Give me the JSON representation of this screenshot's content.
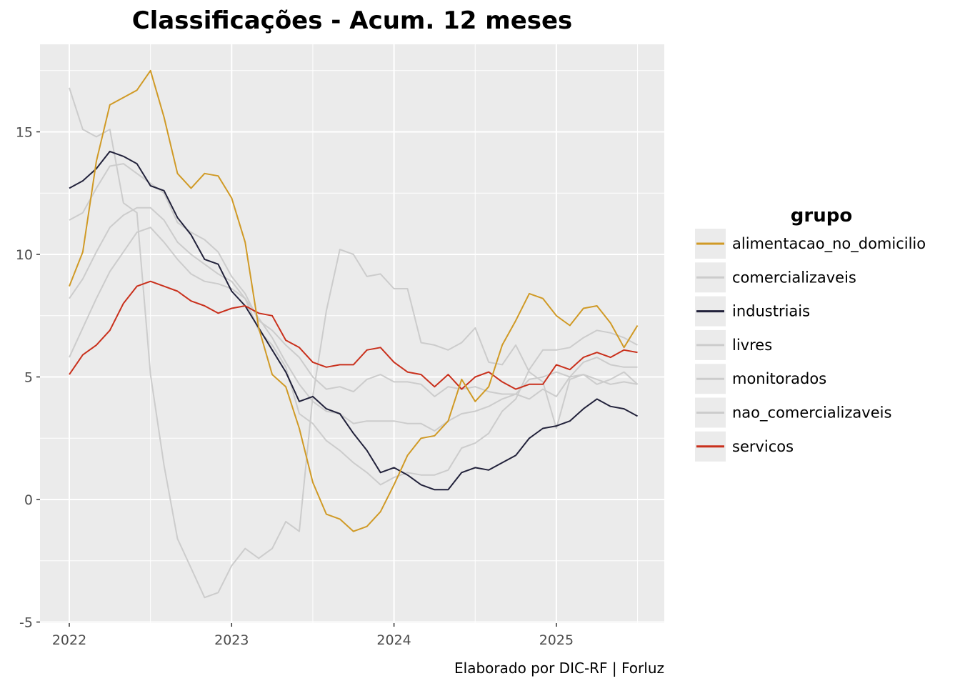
{
  "chart_data": {
    "type": "line",
    "title": "Classificações - Acum. 12 meses",
    "caption": "Elaborado por DIC-RF | Forluz",
    "legend_title": "grupo",
    "legend_position": "right",
    "grid": true,
    "xlabel": "",
    "ylabel": "",
    "x_ticks": [
      "2022",
      "2023",
      "2024",
      "2025"
    ],
    "y_ticks": [
      -5,
      0,
      5,
      10,
      15
    ],
    "ylim": [
      -5,
      18
    ],
    "x_start": "2022-01",
    "x_end": "2025-07",
    "series": [
      {
        "name": "comercializaveis",
        "color": "#cccccc",
        "values": [
          16.8,
          15.1,
          14.8,
          15.1,
          12.1,
          11.7,
          5.1,
          1.4,
          -1.6,
          -2.8,
          -4.0,
          -3.8,
          -2.7,
          -2.0,
          -2.4,
          -2.0,
          -0.9,
          -1.3,
          4.2,
          7.7,
          10.2,
          10.0,
          9.1,
          9.2,
          8.6,
          8.6,
          6.4,
          6.3,
          6.1,
          6.4,
          7.0,
          5.6,
          5.5,
          6.3,
          5.2,
          4.8,
          2.9,
          4.9,
          5.1,
          4.7,
          4.9,
          5.2,
          4.7
        ]
      },
      {
        "name": "livres",
        "color": "#cccccc",
        "values": [
          11.4,
          11.7,
          12.7,
          13.6,
          13.7,
          13.3,
          12.9,
          12.5,
          11.3,
          10.9,
          10.6,
          10.1,
          9.1,
          8.4,
          7.3,
          6.9,
          6.3,
          5.8,
          5.0,
          4.5,
          4.6,
          4.4,
          4.9,
          5.1,
          4.8,
          4.8,
          4.7,
          4.2,
          4.6,
          4.5,
          4.6,
          4.4,
          4.3,
          4.3,
          4.1,
          4.5,
          4.2,
          5.0,
          5.1,
          4.9,
          4.7,
          4.8,
          4.7
        ]
      },
      {
        "name": "monitorados",
        "color": "#cccccc",
        "values": [
          5.8,
          7.0,
          8.2,
          9.3,
          10.1,
          10.9,
          11.1,
          10.5,
          9.8,
          9.2,
          8.9,
          8.8,
          8.6,
          8.2,
          7.4,
          6.6,
          5.6,
          4.7,
          4.0,
          3.6,
          3.5,
          3.1,
          3.2,
          3.2,
          3.2,
          3.1,
          3.1,
          2.8,
          3.2,
          3.5,
          3.6,
          3.8,
          4.1,
          4.3,
          4.9,
          5.0,
          5.2,
          5.0,
          5.6,
          5.8,
          5.5,
          5.4,
          5.4
        ]
      },
      {
        "name": "nao_comercializaveis",
        "color": "#cccccc",
        "values": [
          8.2,
          9.0,
          10.1,
          11.1,
          11.6,
          11.9,
          11.9,
          11.4,
          10.5,
          10.0,
          9.6,
          9.2,
          8.9,
          8.2,
          6.9,
          6.3,
          5.4,
          3.5,
          3.1,
          2.4,
          2.0,
          1.5,
          1.1,
          0.6,
          0.9,
          1.1,
          1.0,
          1.0,
          1.2,
          2.1,
          2.3,
          2.7,
          3.6,
          4.1,
          5.3,
          6.1,
          6.1,
          6.2,
          6.6,
          6.9,
          6.8,
          6.6,
          6.3
        ]
      },
      {
        "name": "industriais",
        "color": "#22223b",
        "values": [
          12.7,
          13.0,
          13.5,
          14.2,
          14.0,
          13.7,
          12.8,
          12.6,
          11.5,
          10.8,
          9.8,
          9.6,
          8.5,
          7.9,
          7.0,
          6.1,
          5.2,
          4.0,
          4.2,
          3.7,
          3.5,
          2.7,
          2.0,
          1.1,
          1.3,
          1.0,
          0.6,
          0.4,
          0.4,
          1.1,
          1.3,
          1.2,
          1.5,
          1.8,
          2.5,
          2.9,
          3.0,
          3.2,
          3.7,
          4.1,
          3.8,
          3.7,
          3.4
        ]
      },
      {
        "name": "servicos",
        "color": "#c9301c",
        "values": [
          5.1,
          5.9,
          6.3,
          6.9,
          8.0,
          8.7,
          8.9,
          8.7,
          8.5,
          8.1,
          7.9,
          7.6,
          7.8,
          7.9,
          7.6,
          7.5,
          6.5,
          6.2,
          5.6,
          5.4,
          5.5,
          5.5,
          6.1,
          6.2,
          5.6,
          5.2,
          5.1,
          4.6,
          5.1,
          4.5,
          5.0,
          5.2,
          4.8,
          4.5,
          4.7,
          4.7,
          5.5,
          5.3,
          5.8,
          6.0,
          5.8,
          6.1,
          6.0
        ]
      },
      {
        "name": "alimentacao_no_domicilio",
        "color": "#d09a26",
        "values": [
          8.7,
          10.1,
          13.8,
          16.1,
          16.4,
          16.7,
          17.5,
          15.6,
          13.3,
          12.7,
          13.3,
          13.2,
          12.3,
          10.5,
          7.0,
          5.1,
          4.6,
          2.9,
          0.7,
          -0.6,
          -0.8,
          -1.3,
          -1.1,
          -0.5,
          0.6,
          1.8,
          2.5,
          2.6,
          3.2,
          4.9,
          4.0,
          4.6,
          6.3,
          7.3,
          8.4,
          8.2,
          7.5,
          7.1,
          7.8,
          7.9,
          7.2,
          6.2,
          7.1
        ]
      }
    ],
    "legend_order": [
      "alimentacao_no_domicilio",
      "comercializaveis",
      "industriais",
      "livres",
      "monitorados",
      "nao_comercializaveis",
      "servicos"
    ]
  }
}
